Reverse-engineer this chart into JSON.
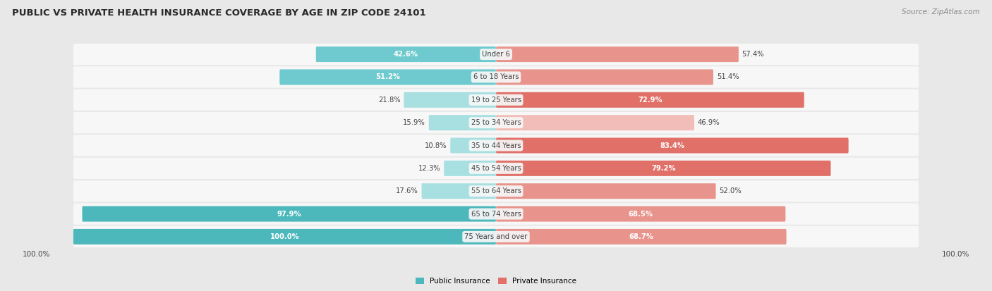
{
  "title": "PUBLIC VS PRIVATE HEALTH INSURANCE COVERAGE BY AGE IN ZIP CODE 24101",
  "source": "Source: ZipAtlas.com",
  "categories": [
    "Under 6",
    "6 to 18 Years",
    "19 to 25 Years",
    "25 to 34 Years",
    "35 to 44 Years",
    "45 to 54 Years",
    "55 to 64 Years",
    "65 to 74 Years",
    "75 Years and over"
  ],
  "public_values": [
    42.6,
    51.2,
    21.8,
    15.9,
    10.8,
    12.3,
    17.6,
    97.9,
    100.0
  ],
  "private_values": [
    57.4,
    51.4,
    72.9,
    46.9,
    83.4,
    79.2,
    52.0,
    68.5,
    68.7
  ],
  "public_color_strong": "#4db8bc",
  "public_color_medium": "#6ecace",
  "public_color_light": "#a8dfe1",
  "private_color_strong": "#e07068",
  "private_color_medium": "#e8948c",
  "private_color_light": "#f2bdb8",
  "bg_color": "#e8e8e8",
  "bar_bg_color": "#f7f7f7",
  "row_sep_color": "#d0d0d0",
  "title_color": "#2a2a2a",
  "source_color": "#888888",
  "label_dark": "#444444",
  "label_white": "#ffffff",
  "legend_labels": [
    "Public Insurance",
    "Private Insurance"
  ],
  "legend_pub_color": "#4db8bc",
  "legend_priv_color": "#e07068"
}
